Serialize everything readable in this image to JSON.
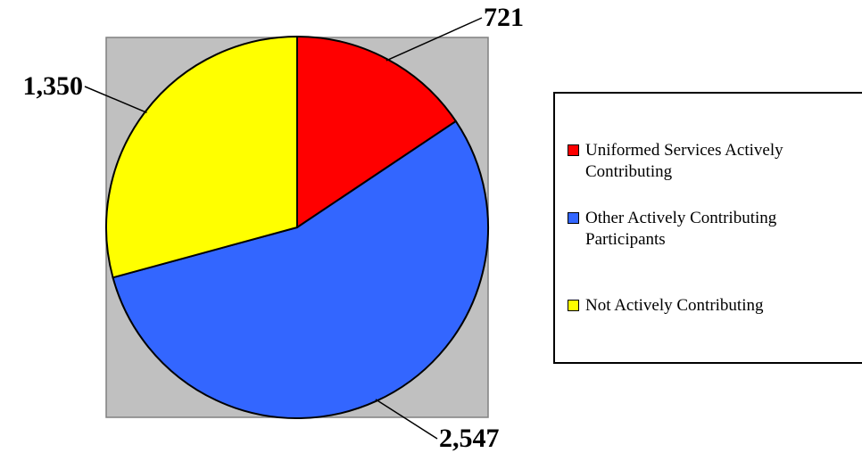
{
  "chart_data": {
    "type": "pie",
    "categories": [
      "Uniformed Services Actively Contributing",
      "Other Actively Contributing Participants",
      "Not Actively Contributing"
    ],
    "values": [
      721,
      2547,
      1350
    ],
    "value_labels": [
      "721",
      "2,547",
      "1,350"
    ],
    "colors": [
      "#ff0000",
      "#3366ff",
      "#ffff00"
    ],
    "legend": "right"
  }
}
